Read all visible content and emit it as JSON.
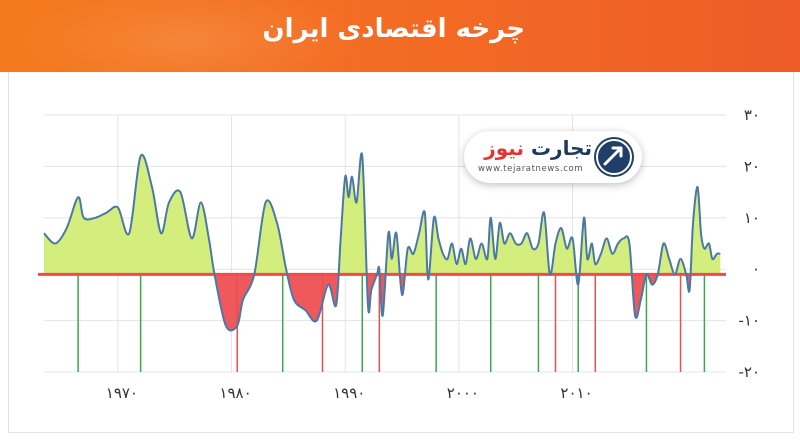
{
  "header": {
    "title": "چرخه اقتصادی ایران"
  },
  "logo": {
    "name_main": "تجارت",
    "name_accent": "نیوز",
    "url": "www.tejaratnews.com"
  },
  "colors": {
    "banner": "#f26a24",
    "positive_fill": "#d3ee7c",
    "negative_fill": "#f0595b",
    "line": "#4a79a8",
    "zero_line": "#f04a4e",
    "peak_marker": "#3aa84a",
    "trough_marker": "#e8504f"
  },
  "chart_data": {
    "type": "area",
    "title": "",
    "xlabel": "",
    "ylabel": "",
    "xlim": [
      1963.5,
      2023.5
    ],
    "ylim": [
      -20,
      30
    ],
    "yticks": [
      30,
      20,
      10,
      0,
      -10,
      -20
    ],
    "ytick_labels": [
      "۳۰",
      "۲۰",
      "۱۰",
      "۰",
      "-۱۰",
      "-۲۰"
    ],
    "xticks": [
      1970,
      1980,
      1990,
      2000,
      2010
    ],
    "xtick_labels": [
      "۱۹۷۰",
      "۱۹۸۰",
      "۱۹۹۰",
      "۲۰۰۰",
      "۲۰۱۰"
    ],
    "grid": true,
    "baseline": -1,
    "series": [
      {
        "x": [
          1963.5,
          1964.5,
          1965.5,
          1966.5,
          1967.0,
          1968.0,
          1969.0,
          1970.0,
          1971.0,
          1972.0,
          1973.0,
          1973.8,
          1974.5,
          1975.5,
          1976.5,
          1977.3,
          1978.0,
          1978.5,
          1979.5,
          1980.5,
          1981.0,
          1982.0,
          1983.0,
          1984.0,
          1984.8,
          1985.5,
          1986.5,
          1987.5,
          1988.5,
          1989.2,
          1989.6,
          1990.0,
          1990.3,
          1990.6,
          1991.0,
          1991.5,
          1992.0,
          1992.3,
          1992.8,
          1993.0,
          1993.3,
          1993.8,
          1994.1,
          1994.5,
          1995.0,
          1995.5,
          1996.0,
          1996.5,
          1997.0,
          1997.3,
          1997.8,
          1998.2,
          1998.6,
          1999.0,
          1999.4,
          1999.8,
          2000.2,
          2000.6,
          2001.0,
          2001.5,
          2002.0,
          2002.5,
          2002.8,
          2003.2,
          2003.6,
          2004.0,
          2004.5,
          2005.0,
          2005.5,
          2006.0,
          2006.5,
          2007.0,
          2007.5,
          2008.0,
          2008.5,
          2009.0,
          2009.5,
          2010.0,
          2010.5,
          2011.0,
          2011.3,
          2011.7,
          2012.0,
          2012.5,
          2013.0,
          2013.5,
          2014.0,
          2014.5,
          2015.0,
          2015.5,
          2016.0,
          2016.5,
          2017.0,
          2017.5,
          2018.0,
          2018.5,
          2019.0,
          2019.5,
          2020.0,
          2020.3,
          2020.6,
          2021.0,
          2021.3,
          2021.6,
          2022.0,
          2022.3,
          2022.7,
          2023.0
        ],
        "y": [
          7,
          5,
          8,
          14,
          10,
          10,
          11,
          12,
          7,
          22,
          16,
          7,
          13,
          15,
          6,
          13,
          6,
          -1,
          -11,
          -11,
          -6,
          -1,
          13,
          9,
          0,
          -6,
          -8,
          -10,
          -3,
          -7,
          6,
          18,
          14,
          18,
          13,
          22,
          -7,
          -4,
          -1,
          0,
          -9,
          7,
          2,
          7,
          -5,
          4,
          3,
          7,
          11,
          -2,
          10,
          6,
          3,
          2,
          5,
          1,
          4,
          1,
          6,
          2,
          5,
          2,
          10,
          2,
          9,
          5,
          7,
          5,
          5,
          7,
          4,
          5,
          11,
          -1,
          5,
          8,
          4,
          6,
          -3,
          10,
          2,
          5,
          1,
          3,
          6,
          3,
          5,
          6,
          5,
          -9,
          -6,
          -1,
          -3,
          -1,
          5,
          2,
          -1,
          2,
          -1,
          -4,
          9,
          16,
          7,
          4,
          5,
          2,
          3,
          3
        ],
        "peaks": [
          1966.5,
          1972.0,
          1984.5,
          1991.5,
          1998.0,
          2002.8,
          2007.0,
          2010.5,
          2016.5,
          2021.6
        ],
        "troughs": [
          1980.5,
          1988.0,
          1993.0,
          2008.5,
          2012.0,
          2019.5
        ]
      }
    ]
  }
}
